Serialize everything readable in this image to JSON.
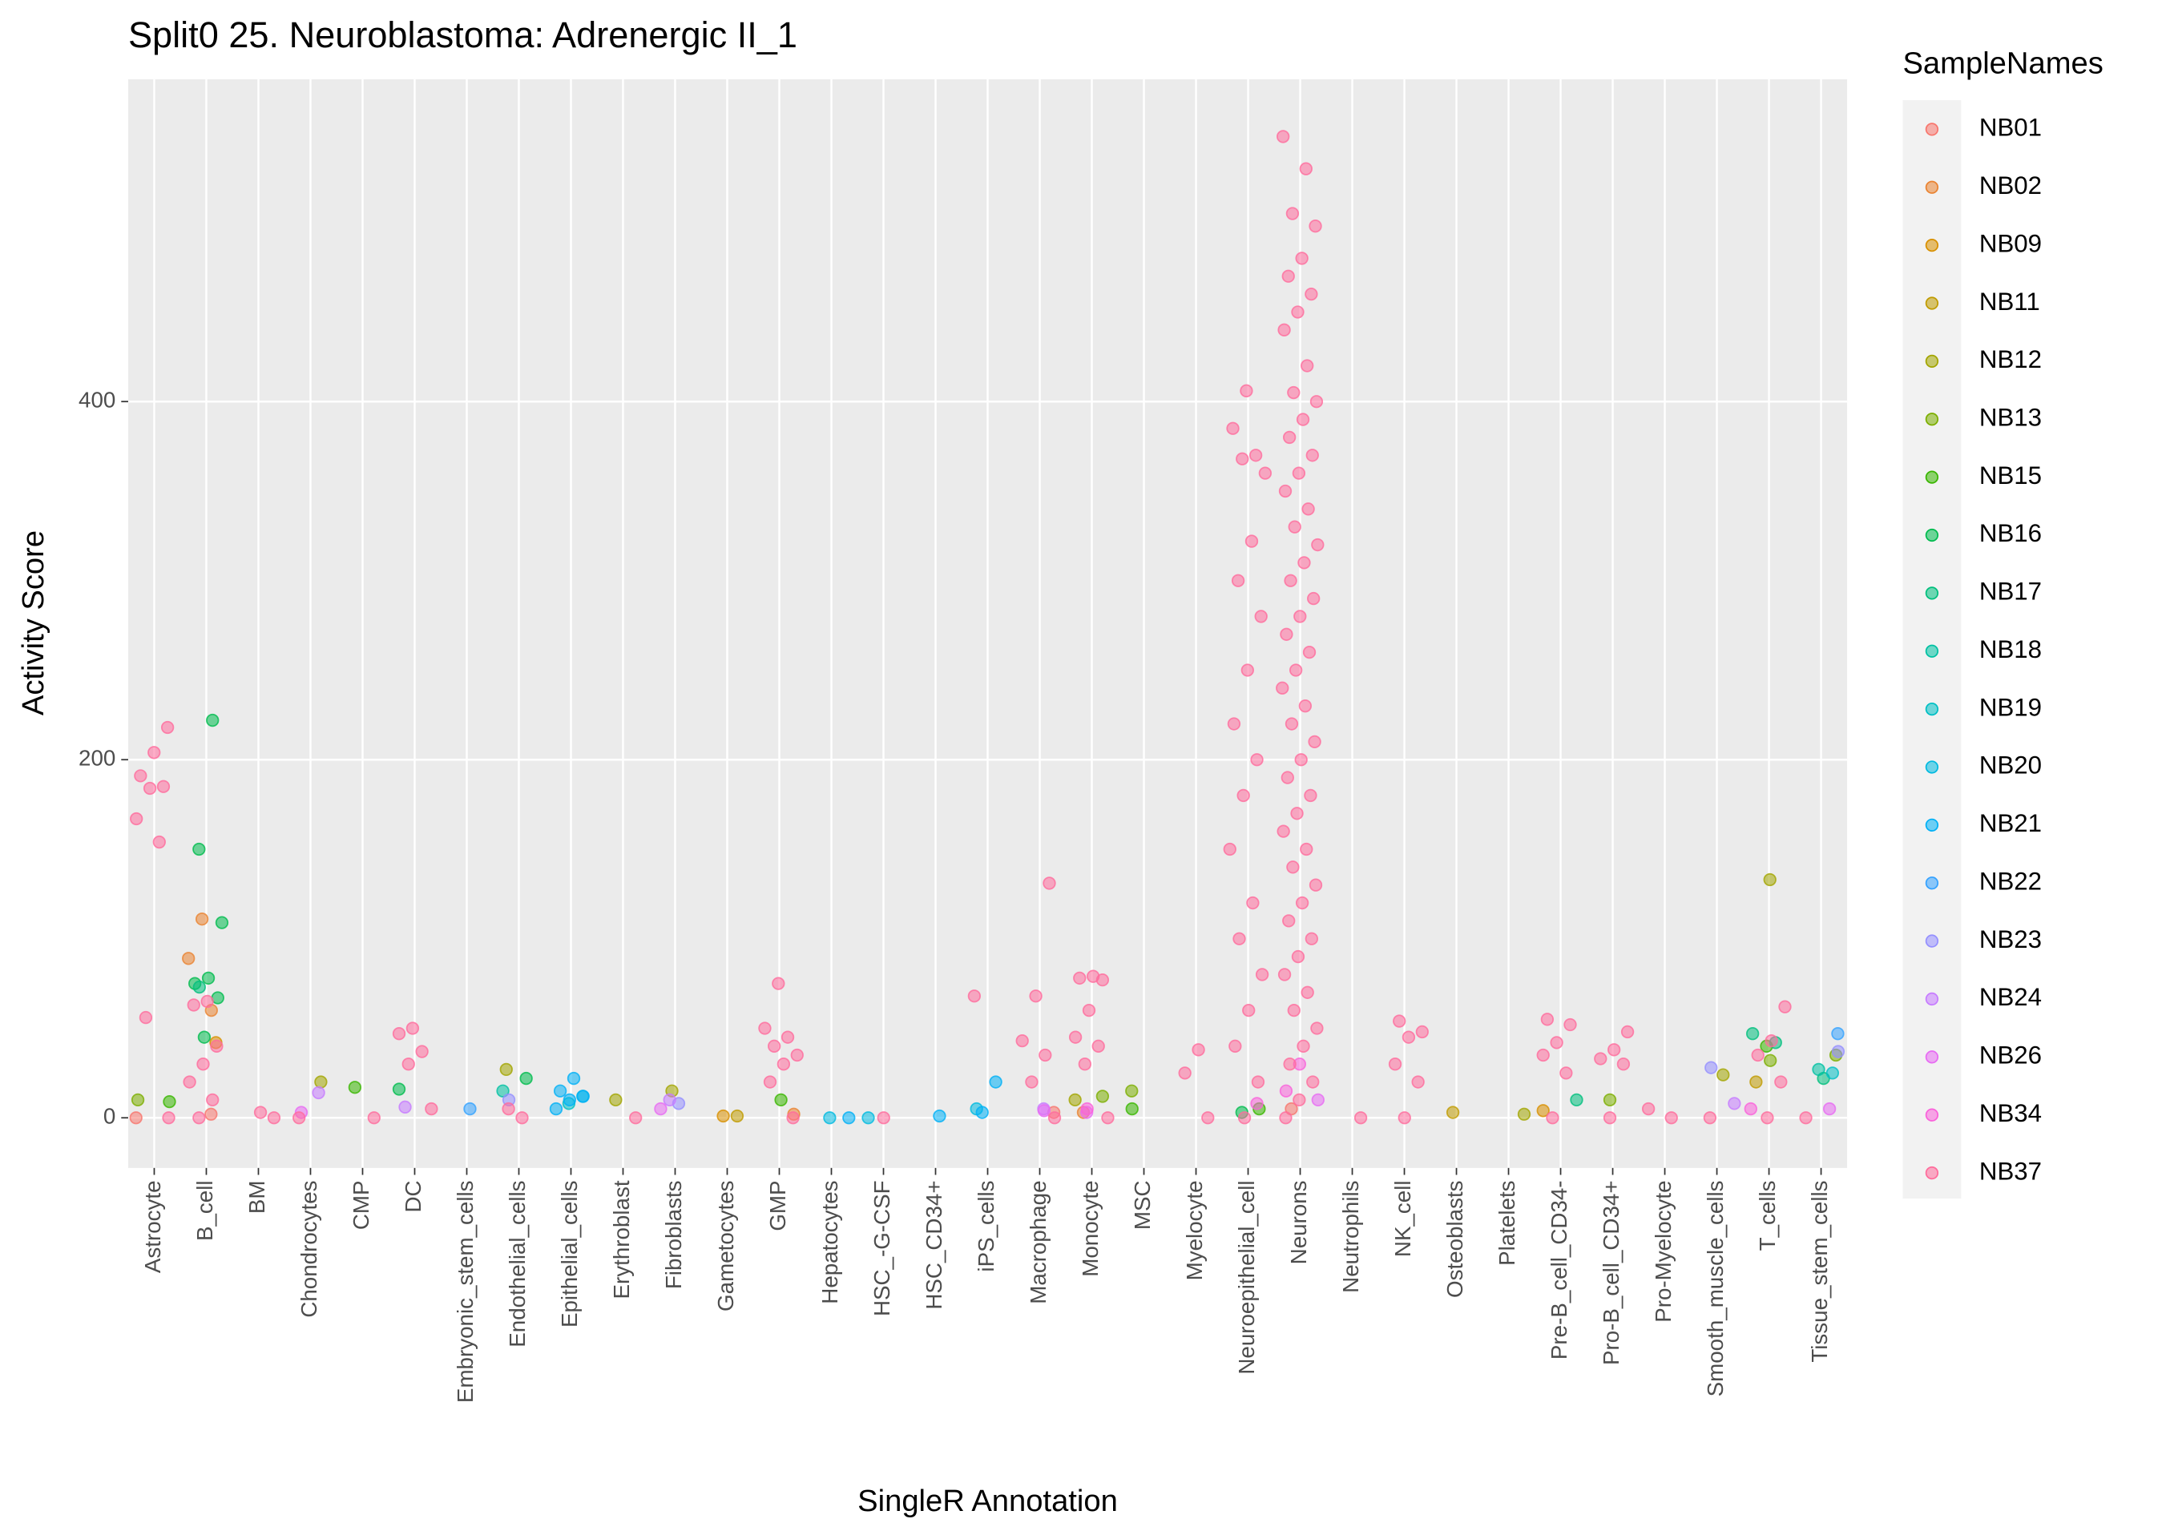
{
  "chart_data": {
    "type": "scatter",
    "title": "Split0 25. Neuroblastoma: Adrenergic II_1",
    "x_label": "SingleR Annotation",
    "y_label": "Activity Score",
    "legend_title": "SampleNames",
    "categories": [
      "Astrocyte",
      "B_cell",
      "BM",
      "Chondrocytes",
      "CMP",
      "DC",
      "Embryonic_stem_cells",
      "Endothelial_cells",
      "Epithelial_cells",
      "Erythroblast",
      "Fibroblasts",
      "Gametocytes",
      "GMP",
      "Hepatocytes",
      "HSC_-G-CSF",
      "HSC_CD34+",
      "iPS_cells",
      "Macrophage",
      "Monocyte",
      "MSC",
      "Myelocyte",
      "Neuroepithelial_cell",
      "Neurons",
      "Neutrophils",
      "NK_cell",
      "Osteoblasts",
      "Platelets",
      "Pre-B_cell_CD34-",
      "Pro-B_cell_CD34+",
      "Pro-Myelocyte",
      "Smooth_muscle_cells",
      "T_cells",
      "Tissue_stem_cells"
    ],
    "ylim": [
      -28,
      580
    ],
    "yticks": [
      0,
      200,
      400
    ],
    "grid": true,
    "legend_position": "right",
    "series": [
      {
        "name": "NB01",
        "color": "#F8766D",
        "x": [
          "Astrocyte",
          "B_cell",
          "Neurons",
          "Macrophage"
        ],
        "values": [
          0,
          2,
          5,
          3
        ]
      },
      {
        "name": "NB02",
        "color": "#EA8331",
        "x": [
          "B_cell",
          "B_cell",
          "B_cell",
          "Monocyte",
          "GMP"
        ],
        "values": [
          111,
          89,
          60,
          3,
          2
        ]
      },
      {
        "name": "NB09",
        "color": "#D89000",
        "x": [
          "B_cell",
          "Gametocytes",
          "Pre-B_cell_CD34-"
        ],
        "values": [
          42,
          1,
          4
        ]
      },
      {
        "name": "NB11",
        "color": "#C09B00",
        "x": [
          "T_cells",
          "Gametocytes",
          "Osteoblasts"
        ],
        "values": [
          20,
          1,
          3
        ]
      },
      {
        "name": "NB12",
        "color": "#A3A500",
        "x": [
          "T_cells",
          "Endothelial_cells",
          "Chondrocytes",
          "Fibroblasts",
          "Monocyte",
          "Smooth_muscle_cells",
          "Erythroblast",
          "Platelets"
        ],
        "values": [
          133,
          27,
          20,
          15,
          10,
          24,
          10,
          2
        ]
      },
      {
        "name": "NB13",
        "color": "#7CAE00",
        "x": [
          "Tissue_stem_cells",
          "T_cells",
          "MSC",
          "Monocyte",
          "Pro-B_cell_CD34+",
          "Astrocyte"
        ],
        "values": [
          35,
          32,
          15,
          12,
          10,
          10
        ]
      },
      {
        "name": "NB15",
        "color": "#39B600",
        "x": [
          "CMP",
          "Astrocyte",
          "GMP",
          "MSC",
          "Neuroepithelial_cell",
          "T_cells"
        ],
        "values": [
          17,
          9,
          10,
          5,
          5,
          40
        ]
      },
      {
        "name": "NB16",
        "color": "#00BB4E",
        "x": [
          "B_cell",
          "B_cell",
          "B_cell",
          "B_cell",
          "B_cell",
          "B_cell",
          "B_cell",
          "DC",
          "Endothelial_cells",
          "Neuroepithelial_cell"
        ],
        "values": [
          222,
          150,
          109,
          78,
          75,
          67,
          45,
          16,
          22,
          3
        ]
      },
      {
        "name": "NB17",
        "color": "#00BF7D",
        "x": [
          "T_cells",
          "T_cells",
          "B_cell",
          "Pre-B_cell_CD34-",
          "Tissue_stem_cells"
        ],
        "values": [
          47,
          42,
          73,
          10,
          22
        ]
      },
      {
        "name": "NB18",
        "color": "#00C1A3",
        "x": [
          "Tissue_stem_cells",
          "Endothelial_cells"
        ],
        "values": [
          27,
          15
        ]
      },
      {
        "name": "NB19",
        "color": "#00BFC4",
        "x": [
          "Tissue_stem_cells",
          "Epithelial_cells"
        ],
        "values": [
          25,
          8
        ]
      },
      {
        "name": "NB20",
        "color": "#00BAE0",
        "x": [
          "iPS_cells",
          "Epithelial_cells",
          "Hepatocytes",
          "HSC_-G-CSF"
        ],
        "values": [
          5,
          12,
          0,
          0
        ]
      },
      {
        "name": "NB21",
        "color": "#00B0F6",
        "x": [
          "Epithelial_cells",
          "Epithelial_cells",
          "Epithelial_cells",
          "Epithelial_cells",
          "Epithelial_cells",
          "iPS_cells",
          "iPS_cells",
          "Hepatocytes",
          "HSC_CD34+"
        ],
        "values": [
          22,
          15,
          12,
          10,
          5,
          20,
          3,
          0,
          1
        ]
      },
      {
        "name": "NB22",
        "color": "#35A2FF",
        "x": [
          "Tissue_stem_cells",
          "Embryonic_stem_cells"
        ],
        "values": [
          47,
          5
        ]
      },
      {
        "name": "NB23",
        "color": "#9590FF",
        "x": [
          "Smooth_muscle_cells",
          "Tissue_stem_cells",
          "Fibroblasts",
          "Endothelial_cells"
        ],
        "values": [
          28,
          37,
          8,
          10
        ]
      },
      {
        "name": "NB24",
        "color": "#C77CFF",
        "x": [
          "Chondrocytes",
          "Fibroblasts",
          "Smooth_muscle_cells",
          "Macrophage",
          "DC"
        ],
        "values": [
          14,
          10,
          8,
          5,
          6
        ]
      },
      {
        "name": "NB26",
        "color": "#E76BF3",
        "x": [
          "Fibroblasts",
          "Tissue_stem_cells",
          "Monocyte",
          "Neurons",
          "Macrophage",
          "Chondrocytes"
        ],
        "values": [
          5,
          5,
          3,
          10,
          4,
          3
        ]
      },
      {
        "name": "NB34",
        "color": "#FA62DB",
        "x": [
          "Neurons",
          "Neurons",
          "Neuroepithelial_cell",
          "Monocyte",
          "T_cells"
        ],
        "values": [
          30,
          15,
          8,
          5,
          5
        ]
      },
      {
        "name": "NB37",
        "color": "#FF6C9C",
        "x": [
          "Astrocyte",
          "Astrocyte",
          "Astrocyte",
          "Astrocyte",
          "Astrocyte",
          "Astrocyte",
          "Astrocyte",
          "Astrocyte",
          "Astrocyte",
          "B_cell",
          "B_cell",
          "B_cell",
          "B_cell",
          "B_cell",
          "B_cell",
          "B_cell",
          "BM",
          "BM",
          "Chondrocytes",
          "CMP",
          "DC",
          "DC",
          "DC",
          "DC",
          "DC",
          "Endothelial_cells",
          "Endothelial_cells",
          "Erythroblast",
          "GMP",
          "GMP",
          "GMP",
          "GMP",
          "GMP",
          "GMP",
          "GMP",
          "GMP",
          "HSC_-G-CSF",
          "iPS_cells",
          "Macrophage",
          "Macrophage",
          "Macrophage",
          "Macrophage",
          "Macrophage",
          "Macrophage",
          "Monocyte",
          "Monocyte",
          "Monocyte",
          "Monocyte",
          "Monocyte",
          "Monocyte",
          "Monocyte",
          "Monocyte",
          "Myelocyte",
          "Myelocyte",
          "Myelocyte",
          "Neuroepithelial_cell",
          "Neuroepithelial_cell",
          "Neuroepithelial_cell",
          "Neuroepithelial_cell",
          "Neuroepithelial_cell",
          "Neuroepithelial_cell",
          "Neuroepithelial_cell",
          "Neuroepithelial_cell",
          "Neuroepithelial_cell",
          "Neuroepithelial_cell",
          "Neuroepithelial_cell",
          "Neuroepithelial_cell",
          "Neuroepithelial_cell",
          "Neuroepithelial_cell",
          "Neuroepithelial_cell",
          "Neuroepithelial_cell",
          "Neuroepithelial_cell",
          "Neuroepithelial_cell",
          "Neuroepithelial_cell",
          "Neuroepithelial_cell",
          "Neurons",
          "Neurons",
          "Neurons",
          "Neurons",
          "Neurons",
          "Neurons",
          "Neurons",
          "Neurons",
          "Neurons",
          "Neurons",
          "Neurons",
          "Neurons",
          "Neurons",
          "Neurons",
          "Neurons",
          "Neurons",
          "Neurons",
          "Neurons",
          "Neurons",
          "Neurons",
          "Neurons",
          "Neurons",
          "Neurons",
          "Neurons",
          "Neurons",
          "Neurons",
          "Neurons",
          "Neurons",
          "Neurons",
          "Neurons",
          "Neurons",
          "Neurons",
          "Neurons",
          "Neurons",
          "Neurons",
          "Neurons",
          "Neurons",
          "Neurons",
          "Neurons",
          "Neurons",
          "Neurons",
          "Neurons",
          "Neurons",
          "Neurons",
          "Neurons",
          "Neurons",
          "Neurons",
          "Neurons",
          "Neurons",
          "Neurons",
          "Neurons",
          "Neurons",
          "Neutrophils",
          "NK_cell",
          "NK_cell",
          "NK_cell",
          "NK_cell",
          "NK_cell",
          "NK_cell",
          "Pre-B_cell_CD34-",
          "Pre-B_cell_CD34-",
          "Pre-B_cell_CD34-",
          "Pre-B_cell_CD34-",
          "Pre-B_cell_CD34-",
          "Pre-B_cell_CD34-",
          "Pro-B_cell_CD34+",
          "Pro-B_cell_CD34+",
          "Pro-B_cell_CD34+",
          "Pro-B_cell_CD34+",
          "Pro-B_cell_CD34+",
          "Pro-Myelocyte",
          "Pro-Myelocyte",
          "Smooth_muscle_cells",
          "T_cells",
          "T_cells",
          "T_cells",
          "T_cells",
          "T_cells",
          "Tissue_stem_cells"
        ],
        "values": [
          218,
          204,
          191,
          185,
          184,
          167,
          154,
          56,
          0,
          65,
          63,
          40,
          30,
          20,
          10,
          0,
          0,
          3,
          0,
          0,
          50,
          47,
          37,
          30,
          5,
          0,
          5,
          0,
          75,
          50,
          45,
          40,
          35,
          30,
          20,
          0,
          0,
          68,
          131,
          68,
          43,
          35,
          20,
          0,
          79,
          78,
          77,
          60,
          45,
          40,
          30,
          0,
          38,
          25,
          0,
          406,
          385,
          370,
          368,
          360,
          322,
          300,
          280,
          250,
          220,
          200,
          180,
          150,
          120,
          100,
          80,
          60,
          40,
          20,
          0,
          548,
          530,
          505,
          498,
          480,
          470,
          460,
          450,
          440,
          420,
          405,
          400,
          390,
          380,
          370,
          360,
          350,
          340,
          330,
          320,
          310,
          300,
          290,
          280,
          270,
          260,
          250,
          240,
          230,
          220,
          210,
          200,
          190,
          180,
          170,
          160,
          150,
          140,
          130,
          120,
          110,
          100,
          90,
          80,
          70,
          60,
          50,
          40,
          30,
          20,
          10,
          0,
          0,
          54,
          48,
          45,
          30,
          20,
          0,
          55,
          52,
          42,
          35,
          25,
          0,
          48,
          38,
          33,
          30,
          0,
          5,
          0,
          0,
          62,
          43,
          35,
          20,
          0,
          0
        ]
      }
    ]
  }
}
